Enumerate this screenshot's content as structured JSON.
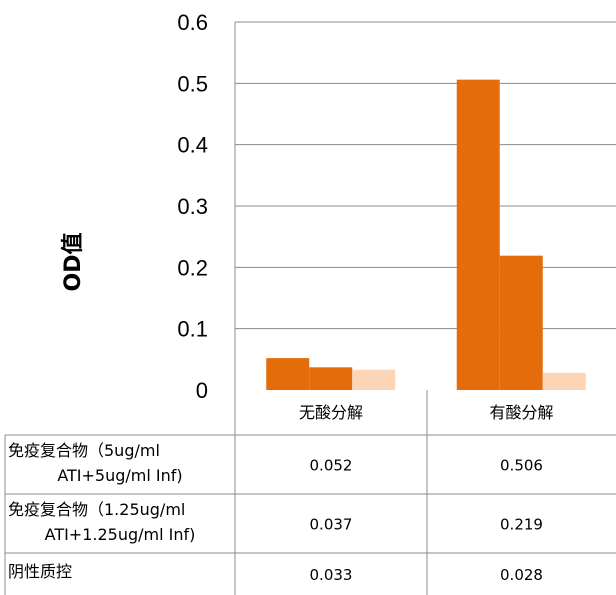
{
  "chart_data": {
    "type": "bar",
    "title": "",
    "xlabel": "",
    "ylabel": "OD值",
    "ylim": [
      0,
      0.6
    ],
    "y_ticks": [
      "0",
      "0.1",
      "0.2",
      "0.3",
      "0.4",
      "0.5",
      "0.6"
    ],
    "grid": true,
    "legend": "data-table",
    "categories": [
      "无酸分解",
      "有酸分解"
    ],
    "series": [
      {
        "name_lines": [
          "免疫复合物（5ug/ml",
          "ATI+5ug/ml Inf)"
        ],
        "color": "#E46C0A",
        "values": [
          0.052,
          0.506
        ],
        "labels": [
          "0.052",
          "0.506"
        ]
      },
      {
        "name_lines": [
          "免疫复合物（1.25ug/ml",
          "ATI+1.25ug/ml Inf)"
        ],
        "color": "#E46C0A",
        "values": [
          0.037,
          0.219
        ],
        "labels": [
          "0.037",
          "0.219"
        ]
      },
      {
        "name_lines": [
          "阴性质控"
        ],
        "color": "#FBD5B5",
        "values": [
          0.033,
          0.028
        ],
        "labels": [
          "0.033",
          "0.028"
        ]
      }
    ]
  }
}
